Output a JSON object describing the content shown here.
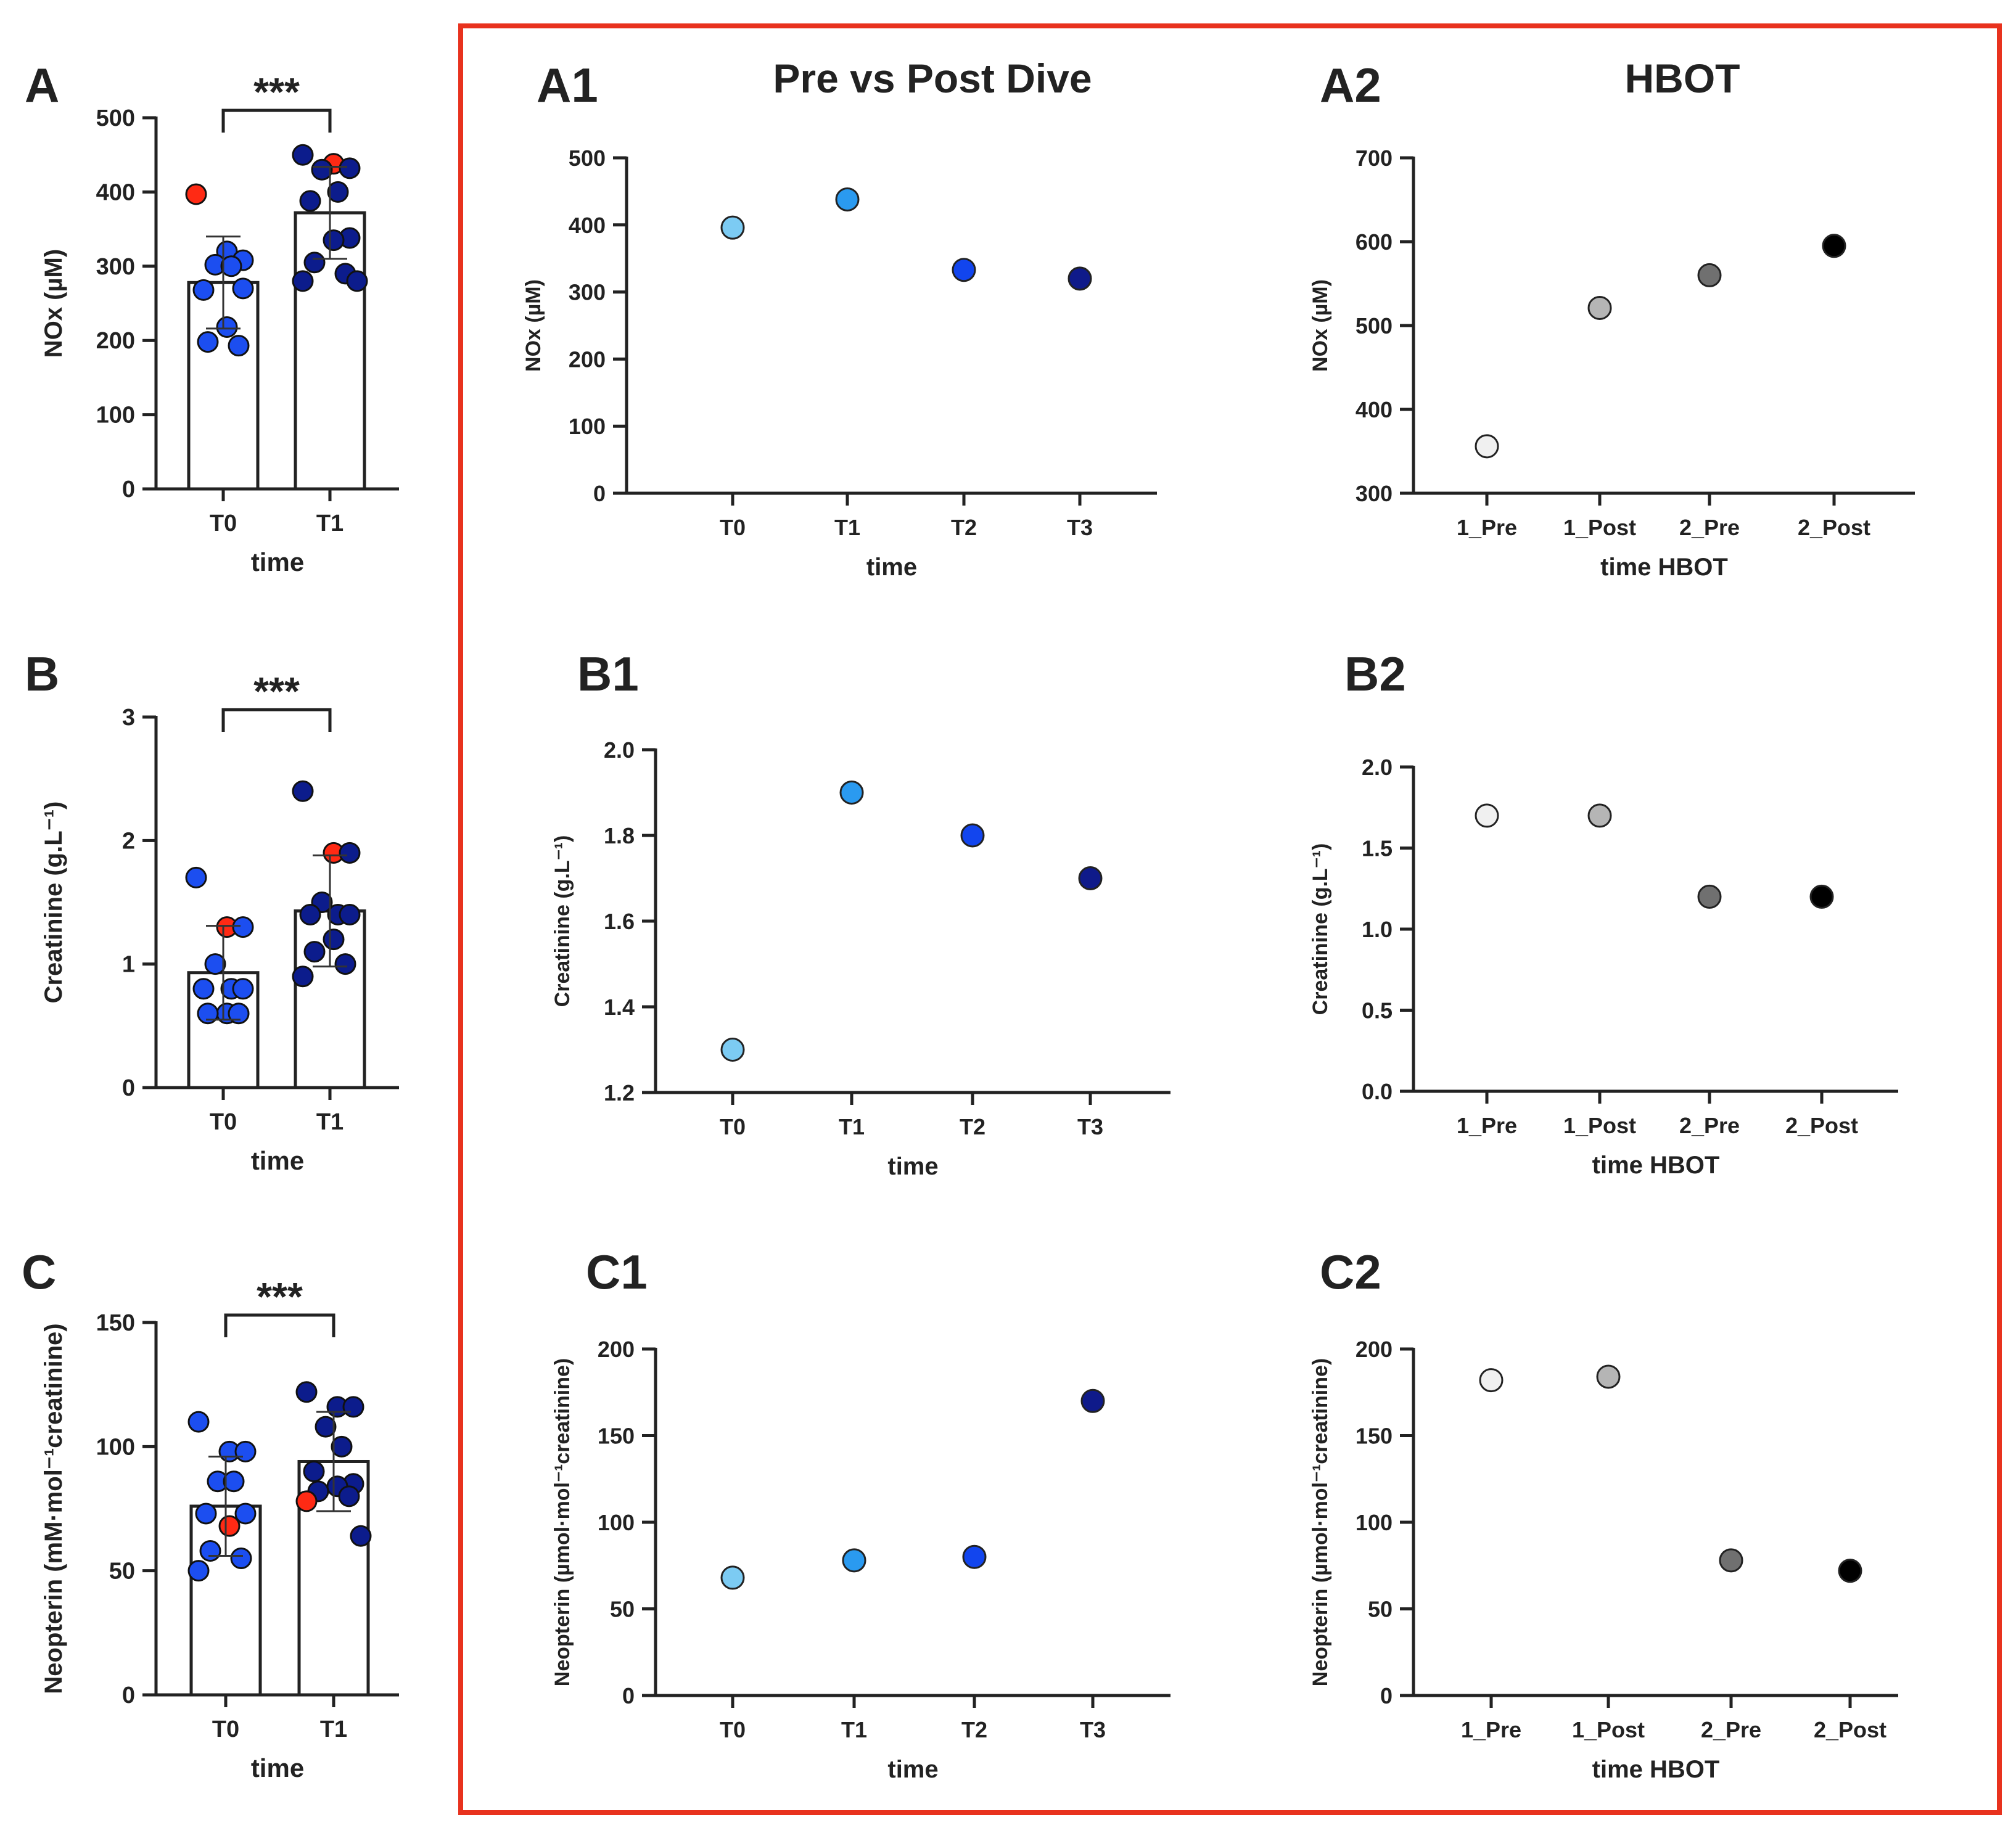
{
  "figure": {
    "accent_color": "#e8321e",
    "bar_color": "#ffffff",
    "dot_T0": "#1c4ef0",
    "dot_T1": "#0c1c8c",
    "dot_outlier": "#ff2a14",
    "cap_titles": {
      "pre_post": "Pre vs Post Dive",
      "hbot": "HBOT"
    }
  },
  "chart_data": [
    {
      "id": "A",
      "type": "bar",
      "panel_label": "A",
      "title": "",
      "categories": [
        "T0",
        "T1"
      ],
      "means": [
        278,
        372
      ],
      "sd": [
        62,
        62
      ],
      "xlabel": "time",
      "ylabel": "NOx  (µM)",
      "ylim": [
        0,
        500
      ],
      "yticks": [
        "0",
        "100",
        "200",
        "300",
        "400",
        "500"
      ],
      "significance": "***",
      "points": [
        [
          {
            "v": 397,
            "o": 1
          },
          {
            "v": 320
          },
          {
            "v": 308
          },
          {
            "v": 302
          },
          {
            "v": 300
          },
          {
            "v": 268
          },
          {
            "v": 270
          },
          {
            "v": 218
          },
          {
            "v": 198
          },
          {
            "v": 193
          }
        ],
        [
          {
            "v": 450
          },
          {
            "v": 438,
            "o": 1
          },
          {
            "v": 432
          },
          {
            "v": 430
          },
          {
            "v": 400
          },
          {
            "v": 388
          },
          {
            "v": 338
          },
          {
            "v": 335
          },
          {
            "v": 305
          },
          {
            "v": 290
          },
          {
            "v": 280
          },
          {
            "v": 280
          }
        ]
      ]
    },
    {
      "id": "B",
      "type": "bar",
      "panel_label": "B",
      "title": "",
      "categories": [
        "T0",
        "T1"
      ],
      "means": [
        0.93,
        1.43
      ],
      "sd": [
        0.38,
        0.45
      ],
      "xlabel": "time",
      "ylabel": "Creatinine (g.L⁻¹)",
      "ylim": [
        0,
        3
      ],
      "yticks": [
        "0",
        "1",
        "2",
        "3"
      ],
      "significance": "***",
      "points": [
        [
          {
            "v": 1.7
          },
          {
            "v": 1.3,
            "o": 1
          },
          {
            "v": 1.3
          },
          {
            "v": 1.0
          },
          {
            "v": 0.8
          },
          {
            "v": 0.8
          },
          {
            "v": 0.8
          },
          {
            "v": 0.6
          },
          {
            "v": 0.6
          },
          {
            "v": 0.6
          }
        ],
        [
          {
            "v": 2.4
          },
          {
            "v": 1.9,
            "o": 1
          },
          {
            "v": 1.9
          },
          {
            "v": 1.5
          },
          {
            "v": 1.4
          },
          {
            "v": 1.4
          },
          {
            "v": 1.4
          },
          {
            "v": 1.2
          },
          {
            "v": 1.1
          },
          {
            "v": 1.0
          },
          {
            "v": 0.9
          }
        ]
      ]
    },
    {
      "id": "C",
      "type": "bar",
      "panel_label": "C",
      "title": "",
      "categories": [
        "T0",
        "T1"
      ],
      "means": [
        76,
        94
      ],
      "sd": [
        20,
        20
      ],
      "xlabel": "time",
      "ylabel": "Neopterin (mM·mol⁻¹creatinine)",
      "ylim": [
        0,
        150
      ],
      "yticks": [
        "0",
        "50",
        "100",
        "150"
      ],
      "significance": "***",
      "points": [
        [
          {
            "v": 110
          },
          {
            "v": 98
          },
          {
            "v": 98
          },
          {
            "v": 86
          },
          {
            "v": 86
          },
          {
            "v": 73
          },
          {
            "v": 73
          },
          {
            "v": 68,
            "o": 1
          },
          {
            "v": 58
          },
          {
            "v": 55
          },
          {
            "v": 50
          }
        ],
        [
          {
            "v": 122
          },
          {
            "v": 116
          },
          {
            "v": 116
          },
          {
            "v": 108
          },
          {
            "v": 100
          },
          {
            "v": 90
          },
          {
            "v": 85
          },
          {
            "v": 84
          },
          {
            "v": 82
          },
          {
            "v": 80
          },
          {
            "v": 78,
            "o": 1
          },
          {
            "v": 64
          }
        ]
      ]
    },
    {
      "id": "A1",
      "type": "scatter",
      "panel_label": "A1",
      "title": "Pre vs Post Dive",
      "categories": [
        "T0",
        "T1",
        "T2",
        "T3"
      ],
      "values": [
        396,
        438,
        333,
        320
      ],
      "colors": [
        "#7ccbf3",
        "#2a9af0",
        "#1245ee",
        "#0f1a8a"
      ],
      "xlabel": "time",
      "ylabel": "NOx (µM)",
      "ylim": [
        0,
        500
      ],
      "yticks": [
        "0",
        "100",
        "200",
        "300",
        "400",
        "500"
      ]
    },
    {
      "id": "A2",
      "type": "scatter",
      "panel_label": "A2",
      "title": "HBOT",
      "categories": [
        "1_Pre",
        "1_Post",
        "2_Pre",
        "2_Post"
      ],
      "values": [
        356,
        521,
        560,
        595
      ],
      "colors": [
        "#f0f0f0",
        "#b5b5b5",
        "#707070",
        "#000000"
      ],
      "xlabel": "time HBOT",
      "ylabel": "NOx (µM)",
      "ylim": [
        300,
        700
      ],
      "yticks": [
        "300",
        "400",
        "500",
        "600",
        "700"
      ]
    },
    {
      "id": "B1",
      "type": "scatter",
      "panel_label": "B1",
      "title": "",
      "categories": [
        "T0",
        "T1",
        "T2",
        "T3"
      ],
      "values": [
        1.3,
        1.9,
        1.8,
        1.7
      ],
      "colors": [
        "#7ccbf3",
        "#2a9af0",
        "#1245ee",
        "#0f1a8a"
      ],
      "xlabel": "time",
      "ylabel": "Creatinine (g.L⁻¹)",
      "ylim": [
        1.2,
        2.0
      ],
      "yticks": [
        "1.2",
        "1.4",
        "1.6",
        "1.8",
        "2.0"
      ]
    },
    {
      "id": "B2",
      "type": "scatter",
      "panel_label": "B2",
      "title": "",
      "categories": [
        "1_Pre",
        "1_Post",
        "2_Pre",
        "2_Post"
      ],
      "values": [
        1.7,
        1.7,
        1.2,
        1.2
      ],
      "colors": [
        "#f0f0f0",
        "#b5b5b5",
        "#707070",
        "#000000"
      ],
      "xlabel": "time HBOT",
      "ylabel": "Creatinine (g.L⁻¹)",
      "ylim": [
        0,
        2.0
      ],
      "yticks": [
        "0.0",
        "0.5",
        "1.0",
        "1.5",
        "2.0"
      ]
    },
    {
      "id": "C1",
      "type": "scatter",
      "panel_label": "C1",
      "title": "",
      "categories": [
        "T0",
        "T1",
        "T2",
        "T3"
      ],
      "values": [
        68,
        78,
        80,
        170
      ],
      "colors": [
        "#7ccbf3",
        "#2a9af0",
        "#1245ee",
        "#0f1a8a"
      ],
      "xlabel": "time",
      "ylabel": "Neopterin (µmol·mol⁻¹creatinine)",
      "ylim": [
        0,
        200
      ],
      "yticks": [
        "0",
        "50",
        "100",
        "150",
        "200"
      ]
    },
    {
      "id": "C2",
      "type": "scatter",
      "panel_label": "C2",
      "title": "",
      "categories": [
        "1_Pre",
        "1_Post",
        "2_Pre",
        "2_Post"
      ],
      "values": [
        182,
        184,
        78,
        72
      ],
      "colors": [
        "#f0f0f0",
        "#b5b5b5",
        "#707070",
        "#000000"
      ],
      "xlabel": "time HBOT",
      "ylabel": "Neopterin (µmol·mol⁻¹creatinine)",
      "ylim": [
        0,
        200
      ],
      "yticks": [
        "0",
        "50",
        "100",
        "150",
        "200"
      ]
    }
  ]
}
